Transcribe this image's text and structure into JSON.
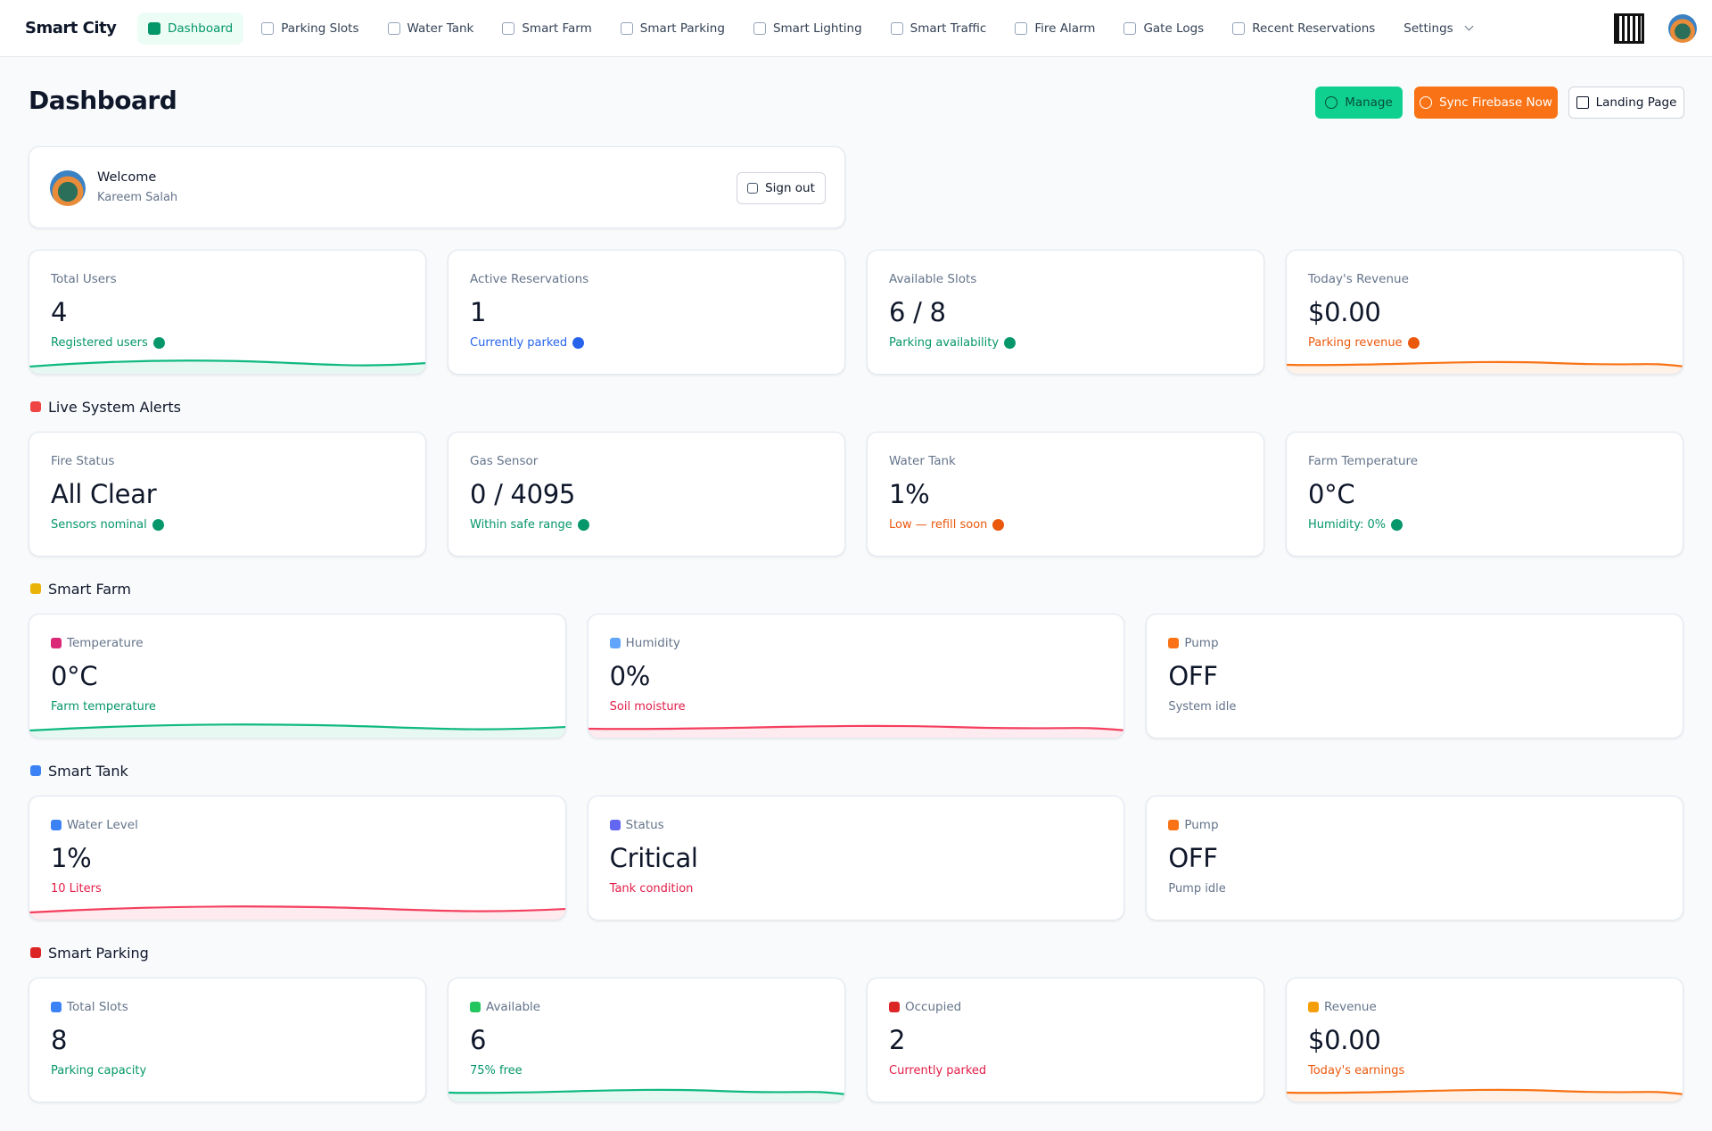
{
  "nav": {
    "brand": "Smart City",
    "items": [
      "Dashboard",
      "Parking Slots",
      "Water Tank",
      "Smart Farm",
      "Smart Parking",
      "Smart Lighting",
      "Smart Traffic",
      "Fire Alarm",
      "Gate Logs",
      "Recent Reservations",
      "Settings"
    ]
  },
  "header": {
    "title": "Dashboard",
    "buttons": [
      "Manage",
      "Sync Firebase Now",
      "Landing Page"
    ]
  },
  "welcome": {
    "greeting": "Welcome",
    "user": "Kareem Salah",
    "action": "Sign out"
  },
  "stats": [
    {
      "label": "Total Users",
      "value": "4",
      "note": "Registered users"
    },
    {
      "label": "Active Reservations",
      "value": "1",
      "note": "Currently parked"
    },
    {
      "label": "Available Slots",
      "value": "6 / 8",
      "note": "Parking availability"
    },
    {
      "label": "Today's Revenue",
      "value": "$0.00",
      "note": "Parking revenue"
    }
  ],
  "sections": [
    {
      "title": "Live System Alerts",
      "cards": [
        {
          "label": "Fire Status",
          "value": "All Clear",
          "note": "Sensors nominal"
        },
        {
          "label": "Gas Sensor",
          "value": "0 / 4095",
          "note": "Within safe range"
        },
        {
          "label": "Water Tank",
          "value": "1%",
          "note": "Low — refill soon"
        },
        {
          "label": "Farm Temperature",
          "value": "0°C",
          "note": "Humidity: 0%"
        }
      ]
    },
    {
      "title": "Smart Farm",
      "cards": [
        {
          "label": "Temperature",
          "value": "0°C",
          "note": "Farm temperature"
        },
        {
          "label": "Humidity",
          "value": "0%",
          "note": "Soil moisture"
        },
        {
          "label": "Pump",
          "value": "OFF",
          "note": "System idle"
        }
      ]
    },
    {
      "title": "Smart Tank",
      "cards": [
        {
          "label": "Water Level",
          "value": "1%",
          "note": "10 Liters"
        },
        {
          "label": "Status",
          "value": "Critical",
          "note": "Tank condition"
        },
        {
          "label": "Pump",
          "value": "OFF",
          "note": "Pump idle"
        }
      ]
    },
    {
      "title": "Smart Parking",
      "cards": [
        {
          "label": "Total Slots",
          "value": "8",
          "note": "Parking capacity"
        },
        {
          "label": "Available",
          "value": "6",
          "note": "75% free"
        },
        {
          "label": "Occupied",
          "value": "2",
          "note": "Currently parked"
        },
        {
          "label": "Revenue",
          "value": "$0.00",
          "note": "Today's earnings"
        }
      ]
    }
  ]
}
